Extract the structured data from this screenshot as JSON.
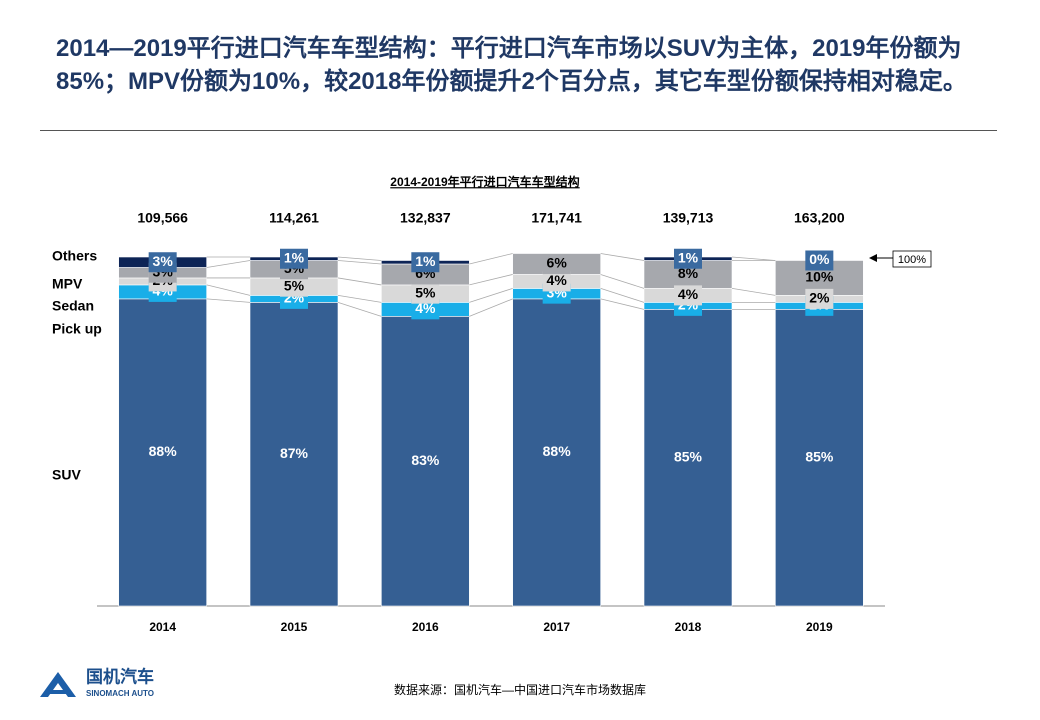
{
  "header": {
    "title": "2014—2019平行进口汽车车型结构：平行进口汽车市场以SUV为主体，2019年份额为85%；MPV份额为10%，较2018年份额提升2个百分点，其它车型份额保持相对稳定。"
  },
  "chart_data": {
    "type": "stacked_bar",
    "title": "2014-2019年平行进口汽车车型结构",
    "categories": [
      "2014",
      "2015",
      "2016",
      "2017",
      "2018",
      "2019"
    ],
    "ylim": [
      0,
      100
    ],
    "totals": {
      "values": [
        109566,
        114261,
        132837,
        171741,
        139713,
        163200
      ],
      "value_labels": [
        "109,566",
        "114,261",
        "132,837",
        "171,741",
        "139,713",
        "163,200"
      ]
    },
    "series": [
      {
        "name": "SUV",
        "color": "#355f93",
        "values": [
          88,
          87,
          83,
          88,
          85,
          85
        ],
        "value_labels": [
          "88%",
          "87%",
          "83%",
          "88%",
          "85%",
          "85%"
        ]
      },
      {
        "name": "Pick up",
        "color": "#19aee8",
        "values": [
          4,
          2,
          4,
          3,
          2,
          2
        ],
        "value_labels": [
          "4%",
          "2%",
          "4%",
          "3%",
          "2%",
          "2%"
        ]
      },
      {
        "name": "Sedan",
        "color": "#d9d9d9",
        "values": [
          2,
          5,
          5,
          4,
          4,
          2
        ],
        "value_labels": [
          "2%",
          "5%",
          "5%",
          "4%",
          "4%",
          "2%"
        ]
      },
      {
        "name": "MPV",
        "color": "#a6a8ad",
        "values": [
          3,
          5,
          6,
          6,
          8,
          10
        ],
        "value_labels": [
          "3%",
          "5%",
          "6%",
          "6%",
          "8%",
          "10%"
        ]
      },
      {
        "name": "Others",
        "color": "#0d2456",
        "values": [
          3,
          1,
          1,
          null,
          1,
          0
        ],
        "value_labels": [
          "3%",
          "1%",
          "1%",
          null,
          "1%",
          "0%"
        ]
      }
    ],
    "annotation": "100%"
  },
  "footer": {
    "source": "数据来源：国机汽车—中国进口汽车市场数据库",
    "logo_text": "国机汽车",
    "logo_subtext": "SINOMACH AUTO"
  }
}
